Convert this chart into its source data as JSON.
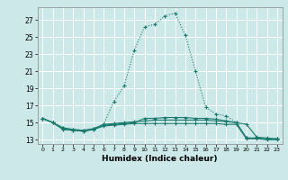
{
  "xlabel": "Humidex (Indice chaleur)",
  "bg_color": "#cce8e8",
  "grid_color": "#ffffff",
  "line_color": "#1a7a6e",
  "xlim": [
    -0.5,
    23.5
  ],
  "ylim": [
    12.5,
    28.5
  ],
  "yticks": [
    13,
    15,
    17,
    19,
    21,
    23,
    25,
    27
  ],
  "xticks": [
    0,
    1,
    2,
    3,
    4,
    5,
    6,
    7,
    8,
    9,
    10,
    11,
    12,
    13,
    14,
    15,
    16,
    17,
    18,
    19,
    20,
    21,
    22,
    23
  ],
  "curve1_x": [
    0,
    1,
    2,
    3,
    4,
    5,
    6,
    7,
    8,
    9,
    10,
    11,
    12,
    13,
    14,
    15,
    16,
    17,
    18,
    19,
    20,
    21,
    22,
    23
  ],
  "curve1_y": [
    15.5,
    15.0,
    14.4,
    14.2,
    14.1,
    14.3,
    14.8,
    17.5,
    19.3,
    23.5,
    26.2,
    26.5,
    27.5,
    27.8,
    25.2,
    21.0,
    16.8,
    16.0,
    15.8,
    15.0,
    13.2,
    13.2,
    13.1,
    13.1
  ],
  "curve2_x": [
    0,
    1,
    2,
    3,
    4,
    5,
    6,
    7,
    8,
    9,
    10,
    11,
    12,
    13,
    14,
    15,
    16,
    17,
    18,
    19,
    20,
    21,
    22,
    23
  ],
  "curve2_y": [
    15.5,
    15.0,
    14.4,
    14.2,
    14.1,
    14.3,
    14.8,
    14.9,
    15.0,
    15.1,
    15.2,
    15.3,
    15.3,
    15.3,
    15.3,
    15.3,
    15.3,
    15.2,
    15.1,
    15.0,
    13.2,
    13.2,
    13.1,
    13.1
  ],
  "curve3_x": [
    0,
    1,
    2,
    3,
    4,
    5,
    6,
    7,
    8,
    9,
    10,
    11,
    12,
    13,
    14,
    15,
    16,
    17,
    18,
    19,
    20,
    21,
    22,
    23
  ],
  "curve3_y": [
    15.5,
    15.0,
    14.2,
    14.1,
    14.0,
    14.2,
    14.6,
    14.7,
    14.8,
    14.9,
    14.9,
    14.9,
    14.9,
    14.9,
    14.9,
    14.9,
    14.9,
    14.9,
    14.8,
    14.8,
    13.1,
    13.1,
    13.0,
    13.0
  ],
  "curve4_x": [
    0,
    1,
    2,
    3,
    4,
    5,
    6,
    7,
    8,
    9,
    10,
    11,
    12,
    13,
    14,
    15,
    16,
    17,
    18,
    19,
    20,
    21,
    22,
    23
  ],
  "curve4_y": [
    15.5,
    15.0,
    14.3,
    14.1,
    14.0,
    14.2,
    14.7,
    14.8,
    14.9,
    15.0,
    15.5,
    15.5,
    15.6,
    15.6,
    15.6,
    15.5,
    15.5,
    15.4,
    15.2,
    15.0,
    14.8,
    13.3,
    13.2,
    13.1
  ]
}
